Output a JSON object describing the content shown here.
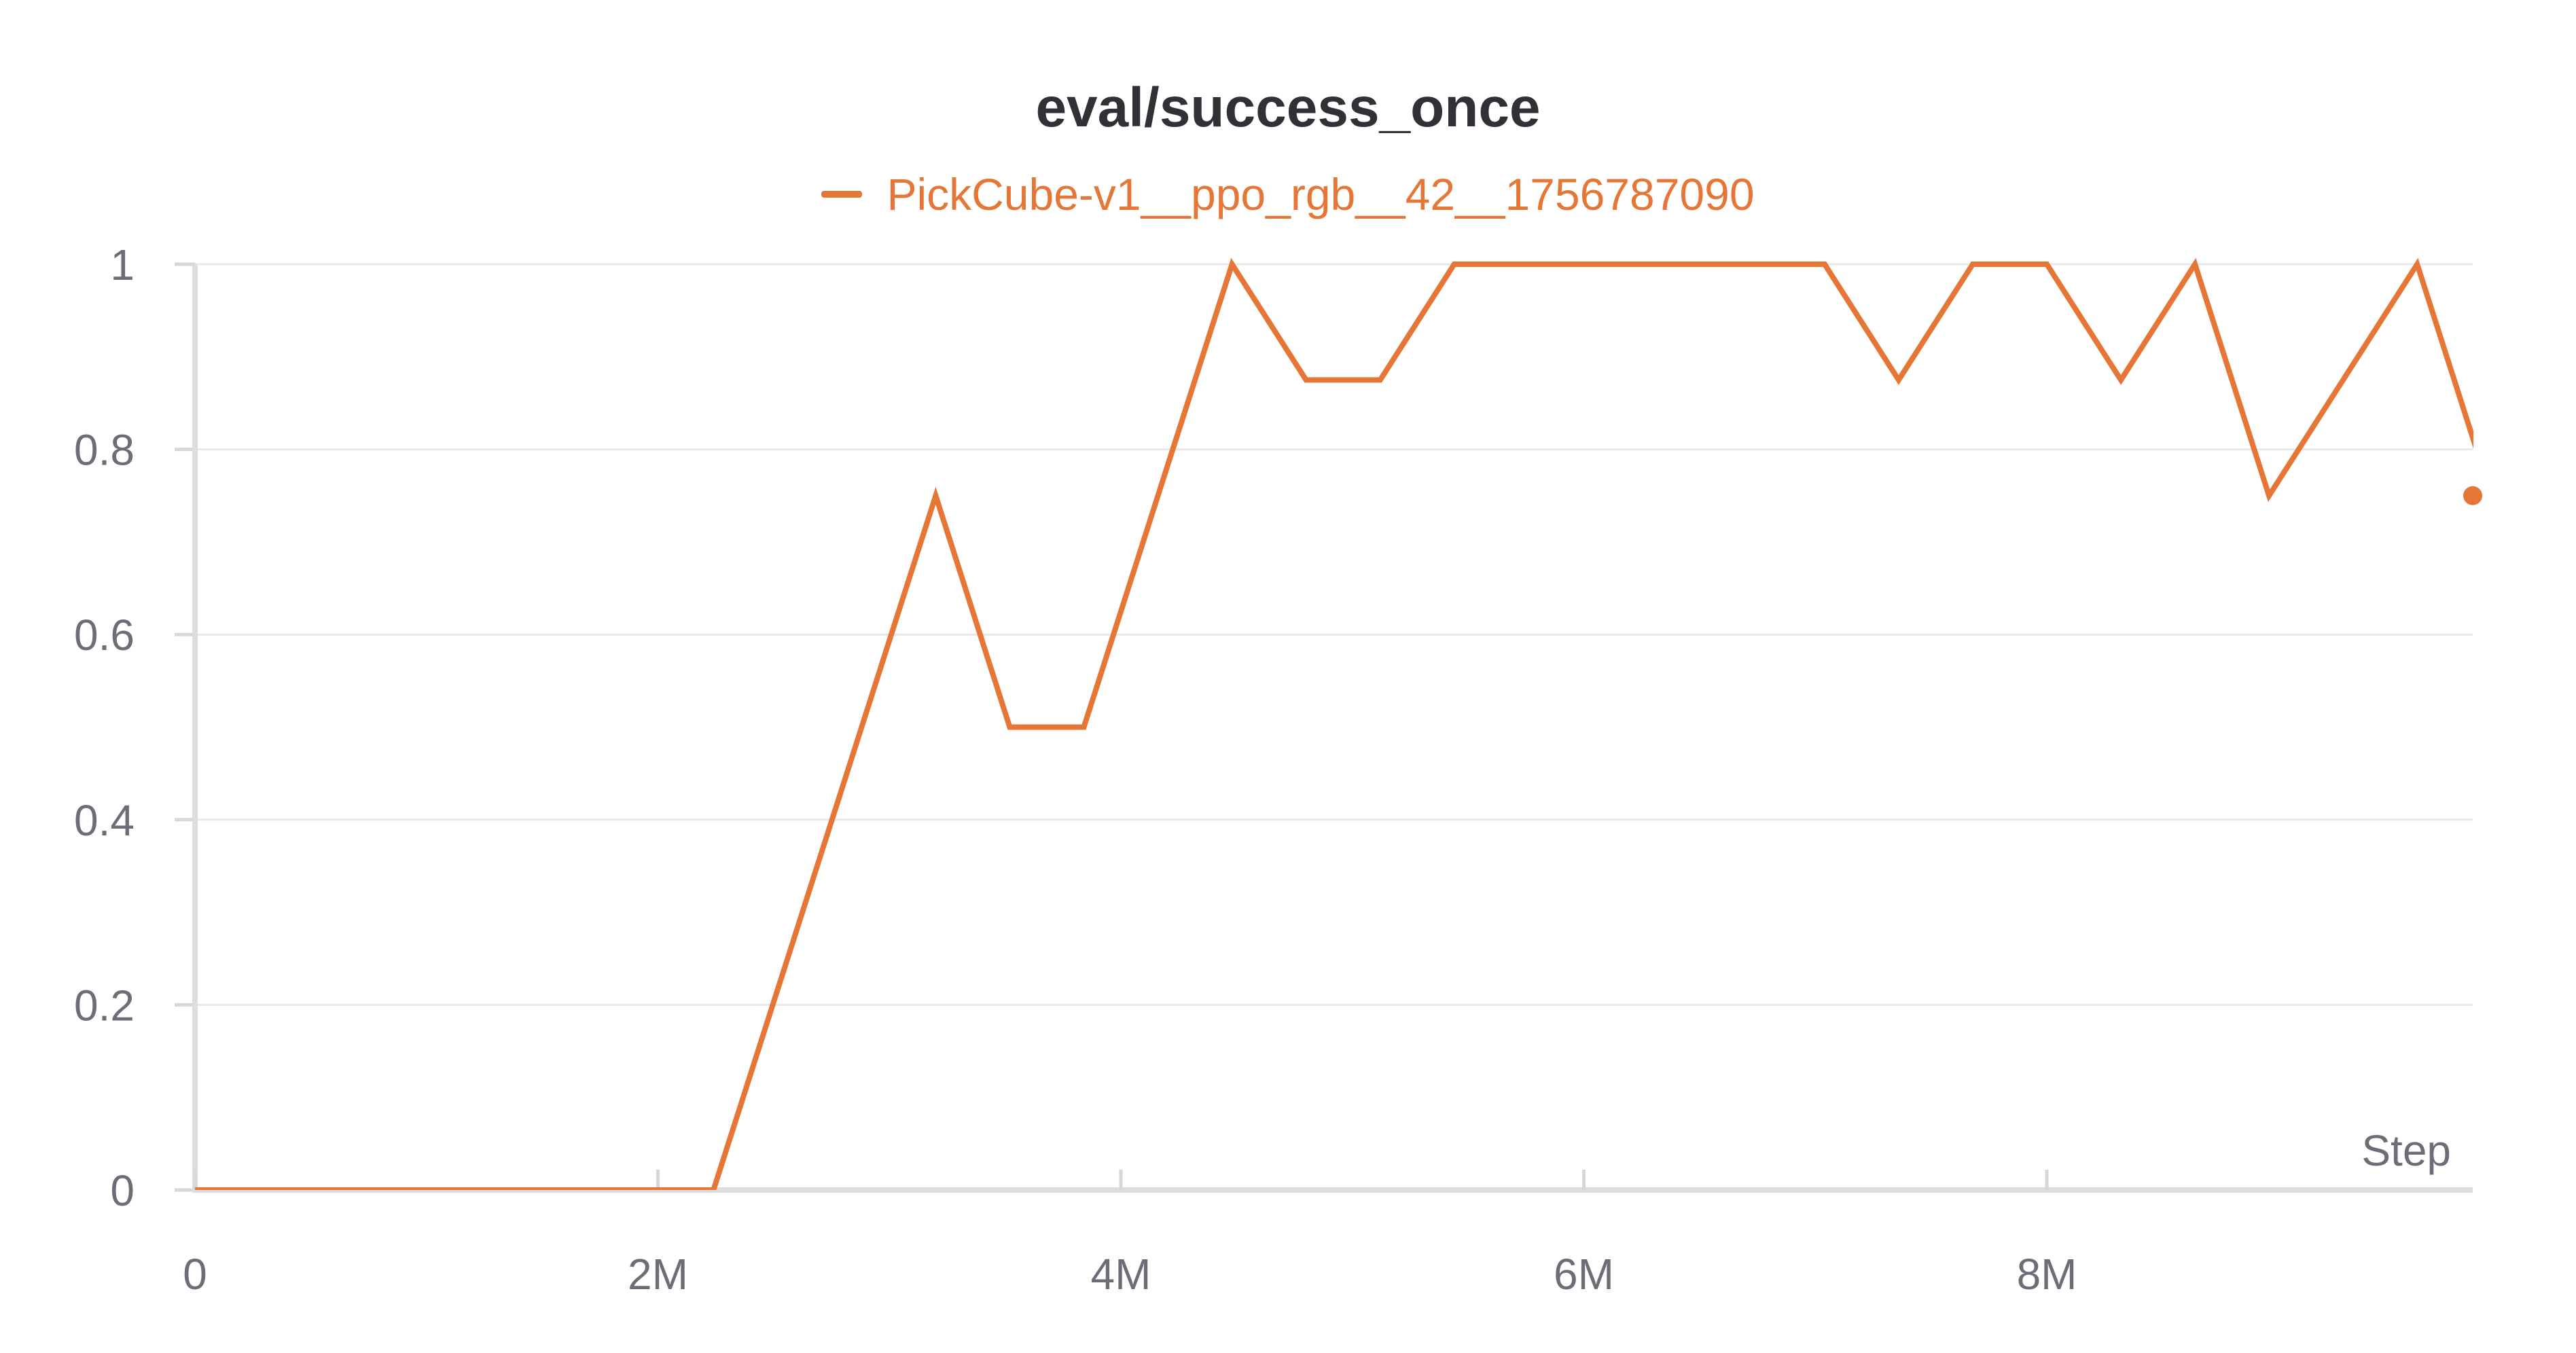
{
  "chart_data": {
    "type": "line",
    "title": "eval/success_once",
    "xlabel": "Step",
    "ylabel": "",
    "xlim": [
      0,
      9840000
    ],
    "ylim": [
      0,
      1
    ],
    "x_ticks": [
      0,
      2000000,
      4000000,
      6000000,
      8000000
    ],
    "x_tick_labels": [
      "0",
      "2M",
      "4M",
      "6M",
      "8M"
    ],
    "y_ticks": [
      0,
      0.2,
      0.4,
      0.6,
      0.8,
      1
    ],
    "y_tick_labels": [
      "0",
      "0.2",
      "0.4",
      "0.6",
      "0.8",
      "1"
    ],
    "grid": true,
    "legend_position": "top-center",
    "series": [
      {
        "name": "PickCube-v1__ppo_rgb__42__1756787090",
        "color": "#e67636",
        "x": [
          0,
          2240000,
          3200000,
          3520000,
          3840000,
          4480000,
          4800000,
          5120000,
          5440000,
          7040000,
          7360000,
          7680000,
          8000000,
          8320000,
          8640000,
          8960000,
          9600000,
          9920000
        ],
        "y": [
          0,
          0,
          0.75,
          0.5,
          0.5,
          1,
          0.875,
          0.875,
          1,
          1,
          0.875,
          1,
          1,
          0.875,
          1,
          0.75,
          1,
          0.75
        ]
      }
    ]
  }
}
